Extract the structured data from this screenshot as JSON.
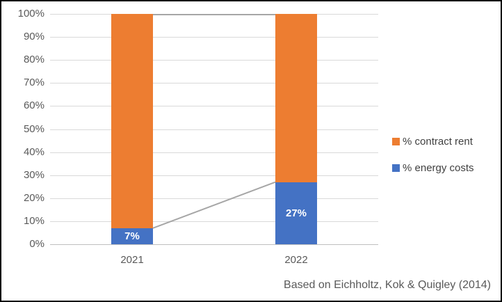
{
  "chart_data": {
    "type": "bar",
    "stacking": "100%",
    "title": "",
    "categories": [
      "2021",
      "2022"
    ],
    "series": [
      {
        "name": "% energy costs",
        "color": "#4472C4",
        "values": [
          7,
          27
        ]
      },
      {
        "name": "% contract rent",
        "color": "#ED7D31",
        "values": [
          93,
          73
        ]
      }
    ],
    "data_labels": [
      "7%",
      "27%"
    ],
    "yticks": [
      "100%",
      "90%",
      "80%",
      "70%",
      "60%",
      "50%",
      "40%",
      "30%",
      "20%",
      "10%",
      "0%"
    ],
    "ylim": [
      0,
      100
    ],
    "grid": true,
    "legend": {
      "position": "right",
      "entries": [
        {
          "label": "% contract rent",
          "color": "#ED7D31"
        },
        {
          "label": "% energy costs",
          "color": "#4472C4"
        }
      ]
    },
    "connector_lines": {
      "color": "#A6A6A6",
      "between": "bars",
      "levels": [
        "energy-top",
        "total-100%"
      ]
    }
  },
  "caption": "Based on Eichholtz, Kok & Quigley (2014)",
  "colors": {
    "orange": "#ED7D31",
    "blue": "#4472C4",
    "gridline": "#D9D9D9",
    "axis_line": "#BFBFBF",
    "connector": "#A6A6A6",
    "text": "#595959",
    "data_label": "#FFFFFF",
    "background": "#FFFFFF",
    "border": "#000000"
  }
}
